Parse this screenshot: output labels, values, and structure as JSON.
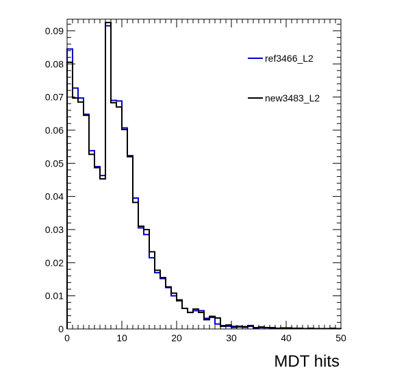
{
  "chart_data": {
    "type": "histogram",
    "xlabel": "MDT hits",
    "ylabel": "",
    "xlim": [
      0,
      50
    ],
    "ylim": [
      0,
      0.0935
    ],
    "bin_width": 1,
    "x_ticks": [
      0,
      10,
      20,
      30,
      40,
      50
    ],
    "x_tick_labels": [
      "0",
      "10",
      "20",
      "30",
      "40",
      "50"
    ],
    "y_ticks": [
      0,
      0.01,
      0.02,
      0.03,
      0.04,
      0.05,
      0.06,
      0.07,
      0.08,
      0.09
    ],
    "y_tick_labels": [
      "0",
      "0.01",
      "0.02",
      "0.03",
      "0.04",
      "0.05",
      "0.06",
      "0.07",
      "0.08",
      "0.09"
    ],
    "legend_position": "top-right",
    "grid": false,
    "series": [
      {
        "name": "ref3466_L2",
        "color": "#0000cc",
        "values": [
          0.0845,
          0.0727,
          0.0697,
          0.0648,
          0.0538,
          0.049,
          0.0463,
          0.0915,
          0.069,
          0.0688,
          0.0607,
          0.0523,
          0.0395,
          0.0305,
          0.0285,
          0.0215,
          0.017,
          0.0152,
          0.0125,
          0.01,
          0.0088,
          0.0062,
          0.005,
          0.0055,
          0.0055,
          0.0032,
          0.0035,
          0.0015,
          0.001,
          0.0008,
          0.0008,
          0.0006,
          0.0005,
          0.0008,
          0.0003,
          0.0004,
          0.0004,
          0.0003,
          0.0002,
          0.0003,
          0.0002,
          0.0002,
          0.0001,
          0.0001,
          0.0001,
          0.0001,
          0.0001,
          0.0001,
          0.0001,
          0.0001
        ]
      },
      {
        "name": "new3483_L2",
        "color": "#000000",
        "values": [
          0.0805,
          0.0697,
          0.0685,
          0.0645,
          0.0527,
          0.0487,
          0.0453,
          0.0925,
          0.0683,
          0.067,
          0.0602,
          0.052,
          0.0382,
          0.031,
          0.03,
          0.0233,
          0.0177,
          0.0155,
          0.0127,
          0.0108,
          0.0085,
          0.0062,
          0.005,
          0.006,
          0.005,
          0.0028,
          0.0038,
          0.0033,
          0.0008,
          0.0012,
          0.0005,
          0.0008,
          0.0007,
          0.001,
          0.0004,
          0.0006,
          0.0004,
          0.0004,
          0.0002,
          0.0003,
          0.0003,
          0.0002,
          0.0002,
          0.0001,
          0.0002,
          0.0001,
          0.0001,
          0.0001,
          0.0002,
          0.0001
        ]
      }
    ]
  }
}
